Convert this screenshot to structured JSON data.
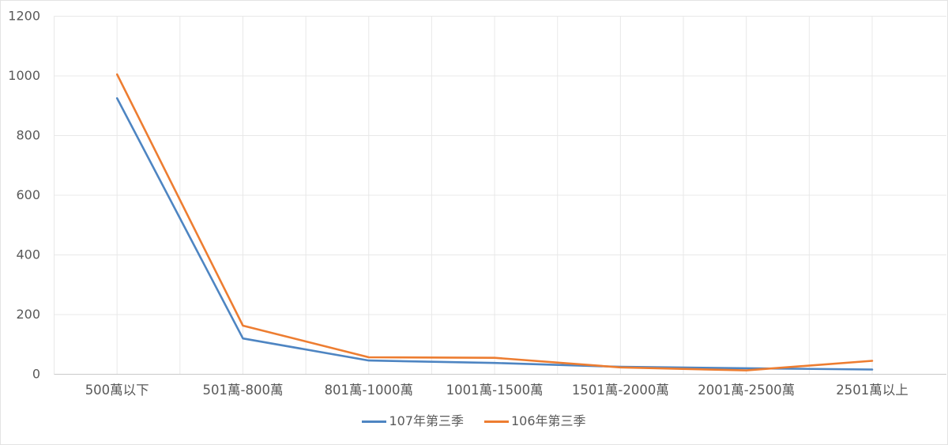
{
  "chart_data": {
    "type": "line",
    "title": "",
    "xlabel": "",
    "ylabel": "",
    "categories": [
      "500萬以下",
      "501萬-800萬",
      "801萬-1000萬",
      "1001萬-1500萬",
      "1501萬-2000萬",
      "2001萬-2500萬",
      "2501萬以上"
    ],
    "series": [
      {
        "name": "107年第三季",
        "color": "#4E85C2",
        "values": [
          925,
          120,
          46,
          38,
          25,
          20,
          16
        ]
      },
      {
        "name": "106年第三季",
        "color": "#ED7D31",
        "values": [
          1005,
          163,
          57,
          55,
          23,
          13,
          45
        ]
      }
    ],
    "ylim": [
      0,
      1200
    ],
    "ytick_step": 200,
    "ytick_labels": [
      "0",
      "200",
      "400",
      "600",
      "800",
      "1000",
      "1200"
    ],
    "grid": {
      "horizontal": true,
      "vertical": true,
      "vertical_per_half_category": true
    },
    "legend_position": "bottom-center"
  },
  "legend": {
    "items": [
      {
        "label": "107年第三季"
      },
      {
        "label": "106年第三季"
      }
    ]
  },
  "colors": {
    "background": "#ffffff",
    "gridline": "#e8e8e8",
    "axis_line": "#c9c9c9",
    "tick_text": "#595959",
    "series_blue": "#4E85C2",
    "series_orange": "#ED7D31"
  }
}
